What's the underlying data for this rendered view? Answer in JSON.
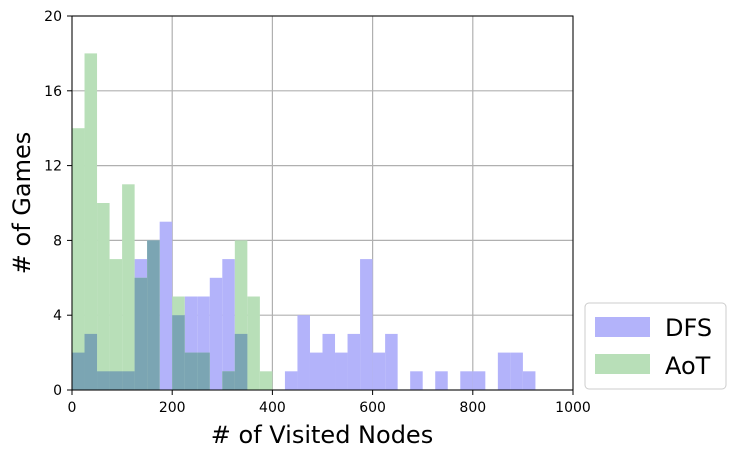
{
  "chart_data": {
    "type": "bar",
    "subtype": "overlapping-histogram",
    "xlabel": "# of Visited Nodes",
    "ylabel": "# of Games",
    "xlim": [
      0,
      1000
    ],
    "ylim": [
      0,
      20
    ],
    "xticks": [
      "0",
      "200",
      "400",
      "600",
      "800",
      "1000"
    ],
    "yticks": [
      "0",
      "4",
      "8",
      "12",
      "16",
      "20"
    ],
    "grid": true,
    "legend_position": "right-bottom",
    "bin_width": 25,
    "series": [
      {
        "name": "DFS",
        "color": "#b3b3fa",
        "bins_start": [
          0,
          25,
          50,
          75,
          100,
          125,
          150,
          175,
          200,
          225,
          250,
          275,
          300,
          325,
          350,
          375,
          400,
          425,
          450,
          475,
          500,
          525,
          550,
          575,
          600,
          625,
          650,
          675,
          700,
          725,
          750,
          775,
          800,
          825,
          850,
          875,
          900
        ],
        "values": [
          2,
          3,
          1,
          1,
          1,
          7,
          8,
          9,
          4,
          5,
          5,
          6,
          7,
          3,
          0,
          0,
          0,
          1,
          4,
          2,
          3,
          2,
          3,
          7,
          2,
          3,
          0,
          1,
          0,
          1,
          0,
          1,
          1,
          0,
          2,
          2,
          1
        ]
      },
      {
        "name": "AoT",
        "color": "#b8dfb8",
        "bins_start": [
          0,
          25,
          50,
          75,
          100,
          125,
          150,
          175,
          200,
          225,
          250,
          275,
          300,
          325,
          350,
          375
        ],
        "values": [
          14,
          18,
          10,
          7,
          11,
          6,
          8,
          0,
          5,
          2,
          2,
          0,
          1,
          8,
          5,
          1
        ]
      }
    ],
    "overlap_color": "#7ba5b3"
  }
}
